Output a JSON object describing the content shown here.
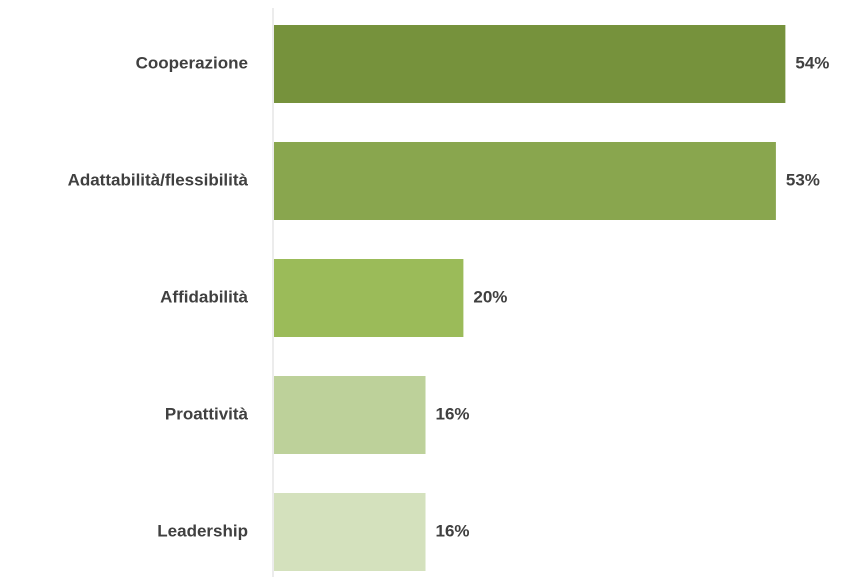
{
  "chart_data": {
    "type": "bar",
    "orientation": "horizontal",
    "categories": [
      "Cooperazione",
      "Adattabilità/flessibilità",
      "Affidabilità",
      "Proattività",
      "Leadership"
    ],
    "values": [
      54,
      53,
      20,
      16,
      16
    ],
    "value_labels": [
      "54%",
      "53%",
      "20%",
      "16%",
      "16%"
    ],
    "colors": [
      "#76923c",
      "#89a64e",
      "#9bbb59",
      "#bdd19a",
      "#d4e1bd"
    ],
    "axis_color": "#d9d9d9",
    "label_color": "#404040",
    "title": "",
    "xlabel": "",
    "ylabel": "",
    "xlim": [
      0,
      54.7
    ],
    "grid": false,
    "legend": "none"
  }
}
